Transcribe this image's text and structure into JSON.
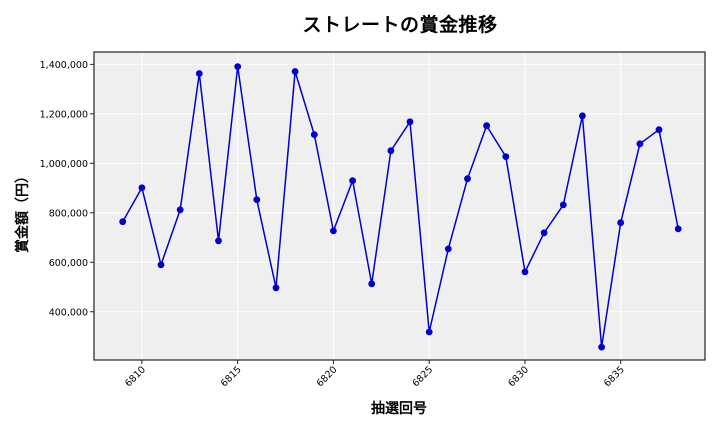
{
  "chart_data": {
    "type": "line",
    "title": "ストレートの賞金推移",
    "xlabel": "抽選回号",
    "ylabel": "賞金額（円）",
    "x": [
      6809,
      6810,
      6811,
      6812,
      6813,
      6814,
      6815,
      6816,
      6817,
      6818,
      6819,
      6820,
      6821,
      6822,
      6823,
      6824,
      6825,
      6826,
      6827,
      6828,
      6829,
      6830,
      6831,
      6832,
      6833,
      6834,
      6835,
      6836,
      6837,
      6838
    ],
    "series": [
      {
        "name": "ストレート",
        "color": "#0000cc",
        "values": [
          764000,
          901000,
          590000,
          812000,
          1363000,
          687000,
          1391000,
          853000,
          497000,
          1371000,
          1116000,
          727000,
          930000,
          513000,
          1051000,
          1168000,
          318000,
          654000,
          938000,
          1152000,
          1027000,
          561000,
          719000,
          832000,
          1192000,
          257000,
          760000,
          1079000,
          1136000,
          735000
        ]
      }
    ],
    "xticks": [
      6810,
      6815,
      6820,
      6825,
      6830,
      6835
    ],
    "xtick_labels": [
      "6810",
      "6815",
      "6820",
      "6825",
      "6830",
      "6835"
    ],
    "yticks": [
      400000,
      600000,
      800000,
      1000000,
      1200000,
      1400000
    ],
    "ytick_labels": [
      "400,000",
      "600,000",
      "800,000",
      "1,000,000",
      "1,200,000",
      "1,400,000"
    ],
    "xlim": [
      6807.5,
      6839.4
    ],
    "ylim": [
      205000,
      1450000
    ],
    "grid": true,
    "legend": "none",
    "plot_background": "#efefef",
    "xtick_rotation": -45
  }
}
